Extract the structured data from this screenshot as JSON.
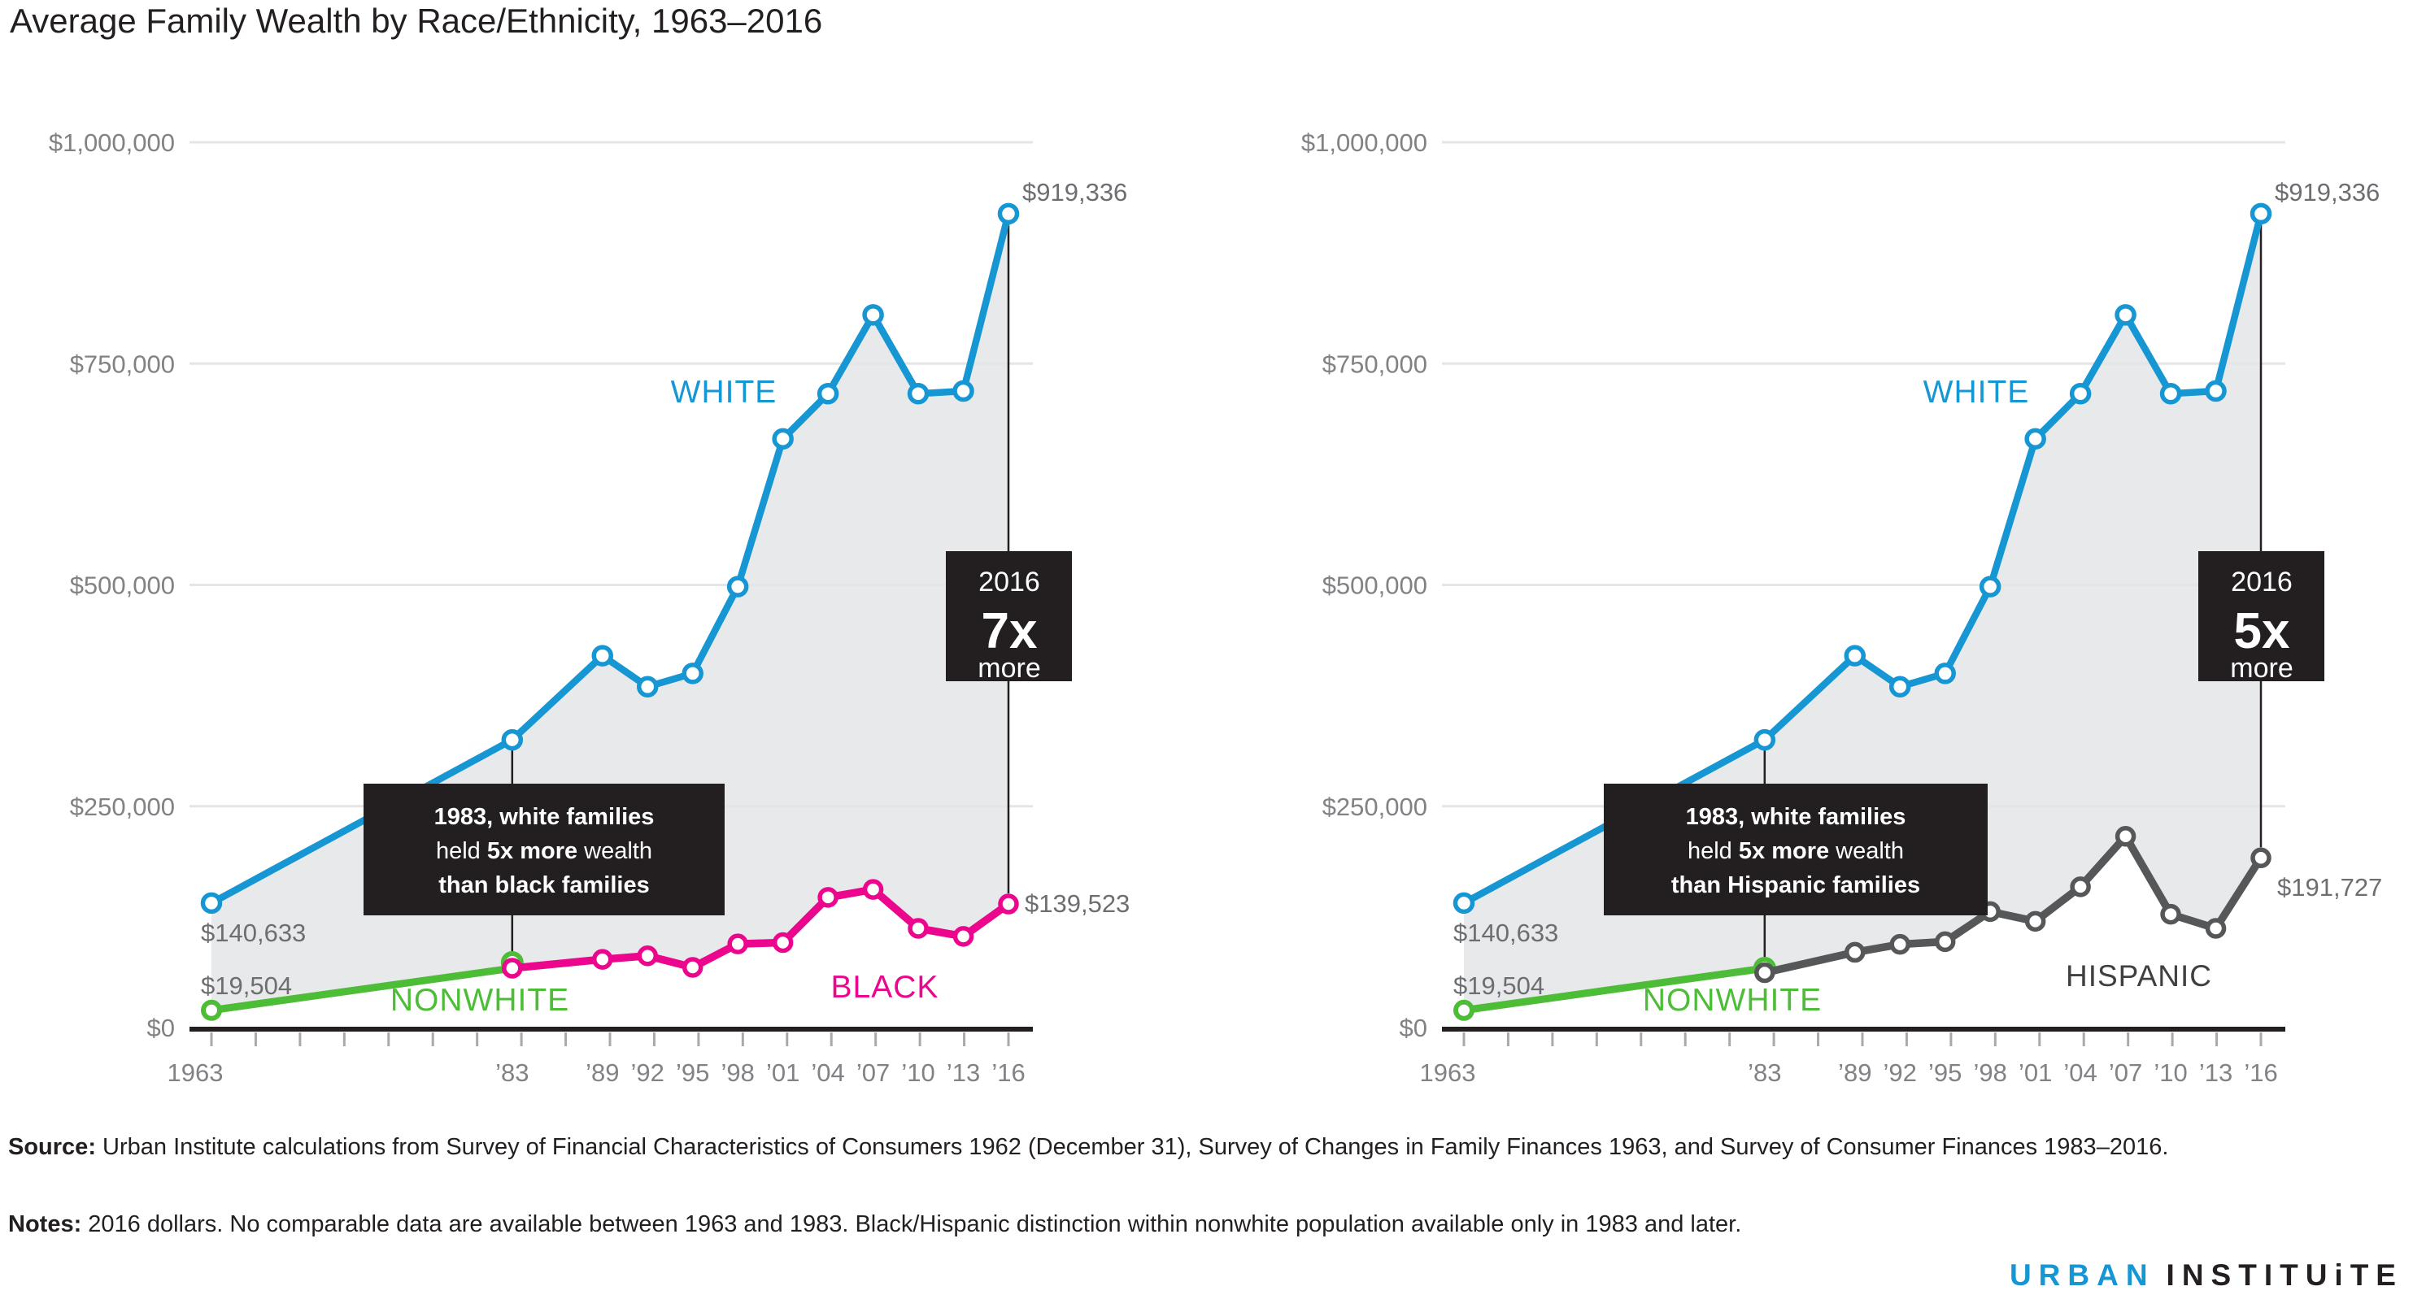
{
  "title": "Average Family Wealth by Race/Ethnicity, 1963–2016",
  "colors": {
    "white_series": "#1696d2",
    "nonwhite_series": "#4dbd38",
    "black_series": "#ec068d",
    "hispanic_series": "#555759",
    "hispanic_label": "#3f4042",
    "area_fill": "#e8e9ea",
    "gridline": "#e4e5e6",
    "axis_line": "#231f20",
    "tick": "#a7a9ac",
    "axis_text": "#808285",
    "value_text": "#6d6e71",
    "callout_bg": "#231f20",
    "callout_text": "#ffffff",
    "logo_blue": "#1696d2",
    "logo_dark": "#231f20"
  },
  "y_axis": {
    "tick_labels": [
      "$0",
      "$250,000",
      "$500,000",
      "$750,000",
      "$1,000,000"
    ],
    "tick_values": [
      0,
      250000,
      500000,
      750000,
      1000000
    ],
    "ylim": [
      0,
      1000000
    ],
    "grid": true
  },
  "x_axis": {
    "tick_labels": [
      "1963",
      "’83",
      "’89",
      "’92",
      "’95",
      "’98",
      "’01",
      "’04",
      "’07",
      "’10",
      "’13",
      "’16"
    ],
    "tick_years": [
      1963,
      1983,
      1989,
      1992,
      1995,
      1998,
      2001,
      2004,
      2007,
      2010,
      2013,
      2016
    ],
    "xlim": [
      1963,
      2016
    ]
  },
  "chart_data": [
    {
      "type": "line",
      "panel": "left",
      "xlabel": "",
      "ylabel": "",
      "series": [
        {
          "name": "WHITE",
          "years": [
            1963,
            1983,
            1989,
            1992,
            1995,
            1998,
            2001,
            2004,
            2007,
            2010,
            2013,
            2016
          ],
          "values": [
            140633,
            325000,
            420000,
            385000,
            400000,
            498000,
            665000,
            716000,
            805000,
            716000,
            719000,
            919336
          ]
        },
        {
          "name": "NONWHITE",
          "years": [
            1963,
            1983
          ],
          "values": [
            19504,
            67000
          ]
        },
        {
          "name": "BLACK",
          "years": [
            1983,
            1989,
            1992,
            1995,
            1998,
            2001,
            2004,
            2007,
            2010,
            2013,
            2016
          ],
          "values": [
            67000,
            77000,
            81000,
            68000,
            94500,
            96000,
            147000,
            156000,
            112000,
            103000,
            139523
          ]
        }
      ],
      "point_labels": {
        "white_start": "$140,633",
        "nonwhite_start": "$19,504",
        "white_end": "$919,336",
        "minority_end": "$139,523"
      },
      "annotations": {
        "callout_1983": {
          "line1": "1983, white families",
          "line2_pre": "held ",
          "line2_bold": "5x more",
          "line2_post": " wealth",
          "line3": "than black families"
        },
        "callout_2016": {
          "year": "2016",
          "multiplier": "7x",
          "suffix": "more"
        }
      }
    },
    {
      "type": "line",
      "panel": "right",
      "xlabel": "",
      "ylabel": "",
      "series": [
        {
          "name": "WHITE",
          "years": [
            1963,
            1983,
            1989,
            1992,
            1995,
            1998,
            2001,
            2004,
            2007,
            2010,
            2013,
            2016
          ],
          "values": [
            140633,
            325000,
            420000,
            385000,
            400000,
            498000,
            665000,
            716000,
            805000,
            716000,
            719000,
            919336
          ]
        },
        {
          "name": "NONWHITE",
          "years": [
            1963,
            1983
          ],
          "values": [
            19504,
            67000
          ]
        },
        {
          "name": "HISPANIC",
          "years": [
            1983,
            1989,
            1992,
            1995,
            1998,
            2001,
            2004,
            2007,
            2010,
            2013,
            2016
          ],
          "values": [
            62000,
            85000,
            94000,
            97000,
            131000,
            120000,
            159000,
            216000,
            128000,
            112000,
            191727
          ]
        }
      ],
      "point_labels": {
        "white_start": "$140,633",
        "nonwhite_start": "$19,504",
        "white_end": "$919,336",
        "minority_end": "$191,727"
      },
      "annotations": {
        "callout_1983": {
          "line1": "1983, white families",
          "line2_pre": "held ",
          "line2_bold": "5x more",
          "line2_post": " wealth",
          "line3": "than Hispanic families"
        },
        "callout_2016": {
          "year": "2016",
          "multiplier": "5x",
          "suffix": "more"
        }
      }
    }
  ],
  "footer": {
    "source_label": "Source:",
    "source_text": " Urban Institute calculations from Survey of Financial Characteristics of Consumers 1962 (December 31), Survey of Changes in Family Finances 1963, and Survey of Consumer Finances 1983–2016.",
    "notes_label": "Notes:",
    "notes_text": " 2016 dollars. No comparable data are available between 1963 and 1983. Black/Hispanic distinction within nonwhite population available only in 1983 and later."
  },
  "logo": {
    "part1": "URBAN",
    "part2": "INSTITUiTE"
  }
}
